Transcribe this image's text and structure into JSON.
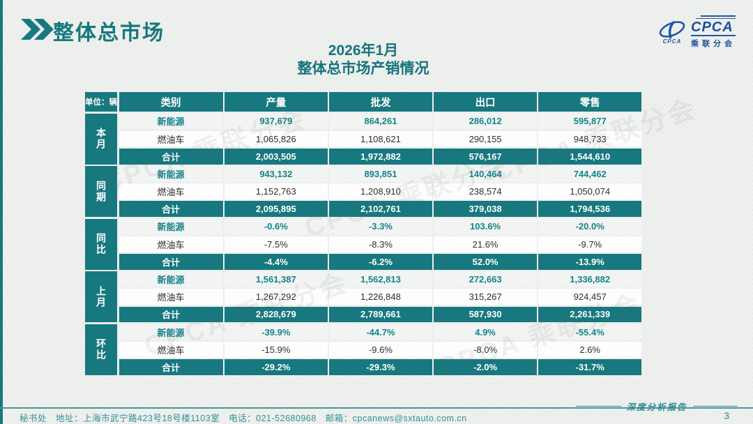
{
  "page": {
    "title": "整体总市场",
    "subtitle_line1": "2026年1月",
    "subtitle_line2": "整体总市场产销情况",
    "report_label": "深度分析报告",
    "page_number": "3",
    "watermark_text": "CPCA 乘联分会"
  },
  "logo": {
    "name": "CPCA",
    "subtitle": "乘联分会",
    "emblem_text": "CPCA"
  },
  "colors": {
    "teal": "#17787f",
    "nev_text": "#17838a",
    "logo_blue": "#1d4f9e",
    "footer_teal": "#30929a"
  },
  "table": {
    "unit_label": "单位：辆",
    "columns": [
      "类别",
      "产量",
      "批发",
      "出口",
      "零售"
    ],
    "groups": [
      {
        "name": "本月",
        "rows": [
          {
            "label": "新能源",
            "type": "nev",
            "values": [
              "937,679",
              "864,261",
              "286,012",
              "595,877"
            ]
          },
          {
            "label": "燃油车",
            "type": "fuel",
            "values": [
              "1,065,826",
              "1,108,621",
              "290,155",
              "948,733"
            ]
          },
          {
            "label": "合计",
            "type": "total",
            "values": [
              "2,003,505",
              "1,972,882",
              "576,167",
              "1,544,610"
            ]
          }
        ]
      },
      {
        "name": "同期",
        "rows": [
          {
            "label": "新能源",
            "type": "nev",
            "values": [
              "943,132",
              "893,851",
              "140,464",
              "744,462"
            ]
          },
          {
            "label": "燃油车",
            "type": "fuel",
            "values": [
              "1,152,763",
              "1,208,910",
              "238,574",
              "1,050,074"
            ]
          },
          {
            "label": "合计",
            "type": "total",
            "values": [
              "2,095,895",
              "2,102,761",
              "379,038",
              "1,794,536"
            ]
          }
        ]
      },
      {
        "name": "同比",
        "rows": [
          {
            "label": "新能源",
            "type": "nev",
            "values": [
              "-0.6%",
              "-3.3%",
              "103.6%",
              "-20.0%"
            ]
          },
          {
            "label": "燃油车",
            "type": "fuel",
            "values": [
              "-7.5%",
              "-8.3%",
              "21.6%",
              "-9.7%"
            ]
          },
          {
            "label": "合计",
            "type": "total",
            "values": [
              "-4.4%",
              "-6.2%",
              "52.0%",
              "-13.9%"
            ]
          }
        ]
      },
      {
        "name": "上月",
        "rows": [
          {
            "label": "新能源",
            "type": "nev",
            "values": [
              "1,561,387",
              "1,562,813",
              "272,663",
              "1,336,882"
            ]
          },
          {
            "label": "燃油车",
            "type": "fuel",
            "values": [
              "1,267,292",
              "1,226,848",
              "315,267",
              "924,457"
            ]
          },
          {
            "label": "合计",
            "type": "total",
            "values": [
              "2,828,679",
              "2,789,661",
              "587,930",
              "2,261,339"
            ]
          }
        ]
      },
      {
        "name": "环比",
        "rows": [
          {
            "label": "新能源",
            "type": "nev",
            "values": [
              "-39.9%",
              "-44.7%",
              "4.9%",
              "-55.4%"
            ]
          },
          {
            "label": "燃油车",
            "type": "fuel",
            "values": [
              "-15.9%",
              "-9.6%",
              "-8.0%",
              "2.6%"
            ]
          },
          {
            "label": "合计",
            "type": "total",
            "values": [
              "-29.2%",
              "-29.3%",
              "-2.0%",
              "-31.7%"
            ]
          }
        ]
      }
    ]
  },
  "footer": {
    "contact": "秘书处　地址：上海市武宁路423号18号楼1103室　电话：021-52680968　邮箱：cpcanews@sxtauto.com.cn"
  }
}
